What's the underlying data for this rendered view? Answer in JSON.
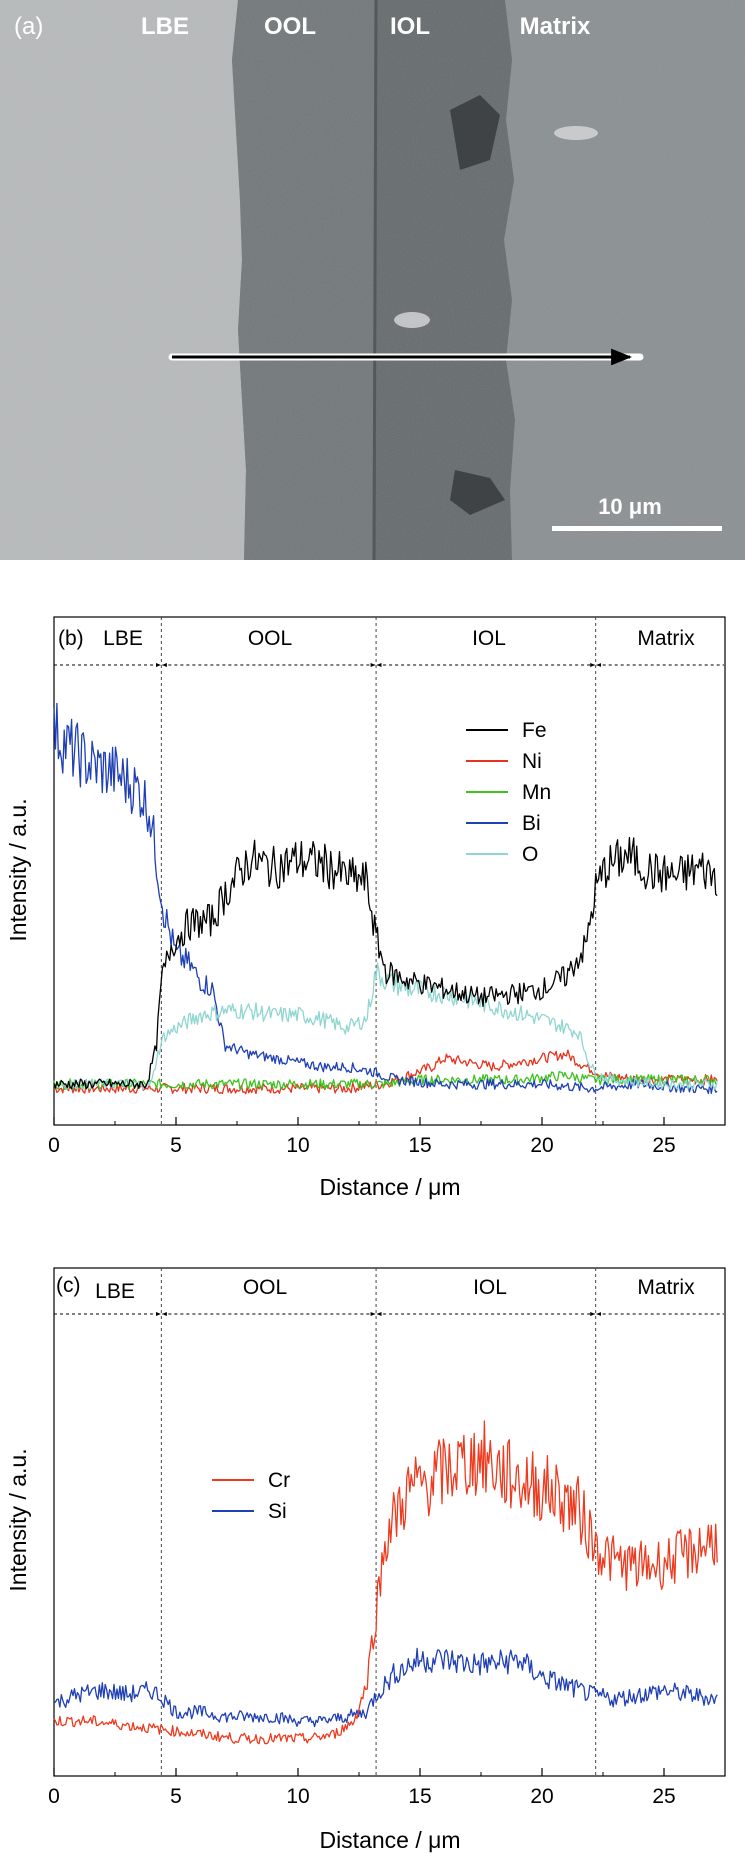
{
  "panel_a": {
    "tag": "(a)",
    "region_labels": [
      "LBE",
      "OOL",
      "IOL",
      "Matrix"
    ],
    "scale_bar": "10 μm"
  },
  "colors": {
    "Fe": "#000000",
    "Ni": "#e8321e",
    "Mn": "#3ec21e",
    "Bi": "#1f3fb4",
    "O": "#8fd6d0",
    "Cr": "#ee3a1e",
    "Si": "#1f3fb4"
  },
  "chart_data": [
    {
      "type": "line",
      "panel": "(b)",
      "xlabel": "Distance / μm",
      "ylabel": "Intensity / a.u.",
      "xlim": [
        0,
        27.5
      ],
      "ylim": [
        0,
        100
      ],
      "xticks": [
        0,
        5,
        10,
        15,
        20,
        25
      ],
      "boundaries": [
        4.4,
        13.2,
        22.2
      ],
      "regions": [
        {
          "label": "LBE",
          "from": 0,
          "to": 4.4
        },
        {
          "label": "OOL",
          "from": 4.4,
          "to": 13.2
        },
        {
          "label": "IOL",
          "from": 13.2,
          "to": 22.2
        },
        {
          "label": "Matrix",
          "from": 22.2,
          "to": 27.5
        }
      ],
      "legend": "center-right",
      "series": [
        {
          "name": "Fe",
          "x": [
            0,
            3.8,
            4.2,
            4.4,
            4.8,
            5.5,
            6.5,
            7,
            8,
            9,
            10,
            11,
            12,
            12.8,
            13.2,
            13.6,
            14.5,
            16,
            17.5,
            19,
            20,
            21,
            21.8,
            22.2,
            22.6,
            23.5,
            24.5,
            25.5,
            26.5,
            27.2
          ],
          "y": [
            6,
            6,
            15,
            30,
            38,
            43,
            44,
            50,
            58,
            56,
            58,
            57,
            54,
            53,
            40,
            32,
            30,
            28,
            26,
            27,
            28,
            31,
            38,
            51,
            56,
            59,
            55,
            54,
            56,
            54
          ]
        },
        {
          "name": "Ni",
          "x": [
            0,
            4,
            6,
            8,
            10,
            12,
            13.5,
            14.5,
            15.5,
            16,
            17,
            18,
            19,
            20,
            21,
            21.5,
            22.5,
            24,
            25.5,
            27.2
          ],
          "y": [
            5,
            5,
            5,
            5,
            5,
            5,
            6,
            8,
            10,
            12,
            11,
            10,
            11,
            12,
            13,
            11,
            8,
            7,
            7,
            7
          ]
        },
        {
          "name": "Mn",
          "x": [
            0,
            4,
            6,
            8,
            10,
            12,
            13.5,
            15,
            17,
            19,
            21,
            22,
            24,
            26,
            27.2
          ],
          "y": [
            6,
            6,
            6,
            6,
            6,
            6,
            6,
            7,
            7,
            7,
            8,
            7,
            7,
            7,
            7
          ]
        },
        {
          "name": "Bi",
          "x": [
            0,
            0.6,
            1.5,
            2.5,
            3.5,
            3.9,
            4.2,
            4.5,
            5,
            5.5,
            6,
            6.5,
            7,
            8,
            9,
            10,
            11,
            12,
            13,
            14,
            16,
            18,
            20,
            22,
            24,
            26,
            27.2
          ],
          "y": [
            88,
            84,
            80,
            78,
            74,
            70,
            58,
            46,
            36,
            34,
            30,
            28,
            15,
            13,
            12,
            11,
            10,
            10,
            9,
            7,
            6,
            6,
            6,
            5,
            6,
            5,
            5
          ]
        },
        {
          "name": "O",
          "x": [
            0,
            4,
            4.2,
            4.5,
            5,
            6,
            7,
            8,
            9,
            10,
            11,
            12,
            12.8,
            13.2,
            13.6,
            14.5,
            16,
            18,
            20,
            21.5,
            22,
            22.3,
            23,
            25,
            27.2
          ],
          "y": [
            6,
            6,
            12,
            17,
            19,
            22,
            23,
            23,
            22,
            22,
            21,
            19,
            21,
            32,
            30,
            28,
            27,
            24,
            21,
            18,
            10,
            8,
            7,
            6,
            6
          ]
        }
      ]
    },
    {
      "type": "line",
      "panel": "(c)",
      "xlabel": "Distance / μm",
      "ylabel": "Intensity / a.u.",
      "xlim": [
        0,
        27.5
      ],
      "ylim": [
        0,
        100
      ],
      "xticks": [
        0,
        5,
        10,
        15,
        20,
        25
      ],
      "boundaries": [
        4.4,
        13.2,
        22.2
      ],
      "regions": [
        {
          "label": "LBE",
          "from": 0,
          "to": 4.4
        },
        {
          "label": "OOL",
          "from": 4.4,
          "to": 13.2
        },
        {
          "label": "IOL",
          "from": 13.2,
          "to": 22.2
        },
        {
          "label": "Matrix",
          "from": 22.2,
          "to": 27.5
        }
      ],
      "legend": "center-left",
      "series": [
        {
          "name": "Cr",
          "x": [
            0,
            1.5,
            3,
            4.5,
            6,
            7.5,
            9,
            10.5,
            11.5,
            12.3,
            12.8,
            13.2,
            13.6,
            14.5,
            15.5,
            16.5,
            17.5,
            18.5,
            19.5,
            20.5,
            21.5,
            22.2,
            23,
            24,
            25,
            26,
            27.2
          ],
          "y": [
            10,
            10,
            9,
            8,
            7,
            6,
            6,
            6,
            7,
            10,
            18,
            35,
            52,
            62,
            65,
            68,
            70,
            66,
            64,
            62,
            58,
            50,
            46,
            45,
            46,
            48,
            52
          ]
        },
        {
          "name": "Si",
          "x": [
            0,
            1,
            2,
            3,
            4,
            4.5,
            5,
            6,
            7,
            8,
            9,
            10,
            11,
            12,
            12.8,
            13.2,
            14,
            15,
            16,
            17,
            18,
            19,
            19.5,
            20,
            21,
            22,
            23,
            24,
            25,
            26,
            27.2
          ],
          "y": [
            14,
            16,
            17,
            16,
            17,
            15,
            12,
            12,
            11,
            11,
            11,
            10,
            10,
            11,
            12,
            16,
            21,
            24,
            24,
            23,
            23,
            24,
            22,
            20,
            18,
            16,
            15,
            16,
            17,
            16,
            15
          ]
        }
      ]
    }
  ]
}
